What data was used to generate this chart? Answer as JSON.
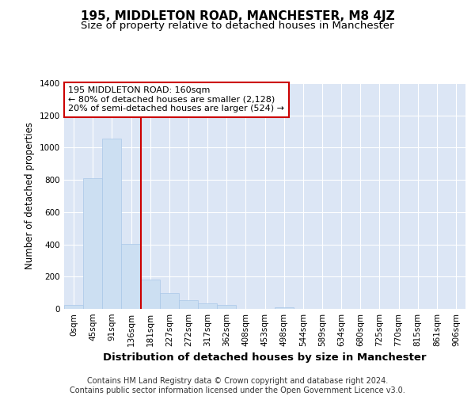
{
  "title": "195, MIDDLETON ROAD, MANCHESTER, M8 4JZ",
  "subtitle": "Size of property relative to detached houses in Manchester",
  "xlabel": "Distribution of detached houses by size in Manchester",
  "ylabel": "Number of detached properties",
  "bin_labels": [
    "0sqm",
    "45sqm",
    "91sqm",
    "136sqm",
    "181sqm",
    "227sqm",
    "272sqm",
    "317sqm",
    "362sqm",
    "408sqm",
    "453sqm",
    "498sqm",
    "544sqm",
    "589sqm",
    "634sqm",
    "680sqm",
    "725sqm",
    "770sqm",
    "815sqm",
    "861sqm",
    "906sqm"
  ],
  "bin_values": [
    25,
    810,
    1055,
    405,
    180,
    100,
    55,
    35,
    25,
    0,
    0,
    10,
    0,
    0,
    0,
    0,
    0,
    0,
    0,
    0,
    0
  ],
  "bar_color": "#ccdff2",
  "bar_edge_color": "#aac8e8",
  "vline_x": 4.0,
  "vline_color": "#cc0000",
  "annotation_text": "195 MIDDLETON ROAD: 160sqm\n← 80% of detached houses are smaller (2,128)\n20% of semi-detached houses are larger (524) →",
  "annotation_box_color": "#ffffff",
  "annotation_box_edge": "#cc0000",
  "ylim": [
    0,
    1400
  ],
  "yticks": [
    0,
    200,
    400,
    600,
    800,
    1000,
    1200,
    1400
  ],
  "background_color": "#dce6f5",
  "footer_text": "Contains HM Land Registry data © Crown copyright and database right 2024.\nContains public sector information licensed under the Open Government Licence v3.0.",
  "title_fontsize": 11,
  "subtitle_fontsize": 9.5,
  "xlabel_fontsize": 9.5,
  "ylabel_fontsize": 8.5,
  "tick_fontsize": 7.5,
  "footer_fontsize": 7,
  "annot_fontsize": 8
}
